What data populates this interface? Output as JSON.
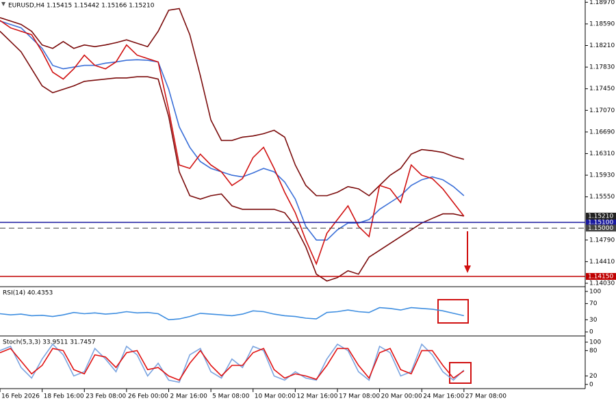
{
  "chart_data": [
    {
      "type": "line",
      "title": "EURUSD,H4 1.15415 1.15442 1.15166 1.15210",
      "x": [
        0,
        4,
        8,
        12,
        16,
        20,
        24,
        28,
        32,
        36,
        40,
        44,
        48,
        52,
        56,
        60,
        64,
        68,
        72,
        76,
        80,
        84,
        88,
        92,
        96,
        100,
        104,
        108,
        112,
        116,
        120,
        124,
        128,
        132,
        136,
        140,
        144,
        148,
        152,
        156,
        160,
        164,
        168,
        172,
        176
      ],
      "xlim": [
        0,
        222
      ],
      "xticks": [
        {
          "value": 0,
          "label": "16 Feb 2026"
        },
        {
          "value": 16,
          "label": "18 Feb 16:00"
        },
        {
          "value": 32,
          "label": "23 Feb 08:00"
        },
        {
          "value": 48,
          "label": "26 Feb 00:00"
        },
        {
          "value": 64,
          "label": "2 Mar 16:00"
        },
        {
          "value": 80,
          "label": "5 Mar 08:00"
        },
        {
          "value": 96,
          "label": "10 Mar 00:00"
        },
        {
          "value": 112,
          "label": "12 Mar 16:00"
        },
        {
          "value": 128,
          "label": "17 Mar 08:00"
        },
        {
          "value": 144,
          "label": "20 Mar 00:00"
        },
        {
          "value": 160,
          "label": "24 Mar 16:00"
        },
        {
          "value": 176,
          "label": "27 Mar 08:00"
        }
      ],
      "ylim": [
        1.1397,
        1.1901
      ],
      "yticks": [
        {
          "value": 1.1897,
          "label": "1.18970"
        },
        {
          "value": 1.1859,
          "label": "1.18590"
        },
        {
          "value": 1.1821,
          "label": "1.18210"
        },
        {
          "value": 1.1783,
          "label": "1.17830"
        },
        {
          "value": 1.1745,
          "label": "1.17450"
        },
        {
          "value": 1.1707,
          "label": "1.17070"
        },
        {
          "value": 1.1669,
          "label": "1.16690"
        },
        {
          "value": 1.1631,
          "label": "1.16310"
        },
        {
          "value": 1.1593,
          "label": "1.15930"
        },
        {
          "value": 1.1555,
          "label": "1.15550"
        },
        {
          "value": 1.1479,
          "label": "1.14790"
        },
        {
          "value": 1.1441,
          "label": "1.14410"
        },
        {
          "value": 1.1403,
          "label": "1.14030"
        }
      ],
      "series": [
        {
          "color": "#7a0a0a",
          "values": [
            1.187,
            1.1864,
            1.1858,
            1.1846,
            1.1822,
            1.1816,
            1.1828,
            1.1816,
            1.1822,
            1.1819,
            1.1822,
            1.1826,
            1.1831,
            1.1825,
            1.1819,
            1.1846,
            1.1883,
            1.1886,
            1.184,
            1.1768,
            1.169,
            1.1654,
            1.1654,
            1.166,
            1.1662,
            1.1666,
            1.1672,
            1.166,
            1.1611,
            1.1575,
            1.1557,
            1.1557,
            1.1563,
            1.1573,
            1.1569,
            1.1557,
            1.1575,
            1.1593,
            1.1605,
            1.163,
            1.1638,
            1.1636,
            1.1633,
            1.1626,
            1.1621
          ]
        },
        {
          "color": "#7a0a0a",
          "values": [
            1.1846,
            1.1828,
            1.181,
            1.178,
            1.175,
            1.1738,
            1.1744,
            1.175,
            1.1758,
            1.176,
            1.1762,
            1.1764,
            1.1764,
            1.1766,
            1.1766,
            1.1762,
            1.1696,
            1.1599,
            1.1557,
            1.1551,
            1.1557,
            1.156,
            1.1539,
            1.1533,
            1.1533,
            1.1533,
            1.1533,
            1.1527,
            1.1503,
            1.1467,
            1.1419,
            1.1407,
            1.1413,
            1.1425,
            1.1419,
            1.1449,
            1.1461,
            1.1473,
            1.1485,
            1.1497,
            1.1509,
            1.1517,
            1.1525,
            1.1525,
            1.1521
          ]
        },
        {
          "color": "#3a6fd8",
          "values": [
            1.1864,
            1.1858,
            1.1852,
            1.1834,
            1.1816,
            1.1786,
            1.178,
            1.1783,
            1.1786,
            1.1786,
            1.179,
            1.1792,
            1.1795,
            1.1796,
            1.1795,
            1.1792,
            1.1744,
            1.1678,
            1.1642,
            1.1617,
            1.1605,
            1.1599,
            1.1593,
            1.159,
            1.1597,
            1.1605,
            1.1599,
            1.1581,
            1.1551,
            1.1503,
            1.1479,
            1.1479,
            1.1497,
            1.1509,
            1.1509,
            1.1515,
            1.1533,
            1.1545,
            1.1557,
            1.1575,
            1.1585,
            1.159,
            1.1585,
            1.1573,
            1.1557
          ]
        },
        {
          "color": "#d01010",
          "values": [
            1.1865,
            1.1852,
            1.1846,
            1.184,
            1.181,
            1.1774,
            1.1762,
            1.178,
            1.1804,
            1.1786,
            1.178,
            1.1792,
            1.1822,
            1.1804,
            1.1798,
            1.1792,
            1.1708,
            1.1611,
            1.1605,
            1.163,
            1.1611,
            1.1599,
            1.1575,
            1.1587,
            1.1624,
            1.1642,
            1.1605,
            1.1563,
            1.1527,
            1.1479,
            1.1437,
            1.1491,
            1.1515,
            1.1539,
            1.1503,
            1.1485,
            1.1575,
            1.1569,
            1.1545,
            1.1611,
            1.1593,
            1.1587,
            1.1569,
            1.1545,
            1.1521
          ]
        }
      ],
      "levels": [
        {
          "value": 1.151,
          "label": "1.15100",
          "color": "#1a1aa0",
          "dashed": false
        },
        {
          "value": 1.15,
          "label": "1.15000",
          "color": "#444444",
          "dashed": true
        },
        {
          "value": 1.1415,
          "label": "1.14150",
          "color": "#c00000",
          "dashed": false
        }
      ],
      "price_tag": {
        "value": 1.1521,
        "label": "1.15210",
        "color": "#222222"
      }
    },
    {
      "type": "line",
      "title": "RSI(14) 40.4353",
      "ylim": [
        -10,
        110
      ],
      "yticks": [
        100,
        70,
        30,
        0
      ],
      "series": [
        {
          "color": "#3d8de0",
          "values": [
            45,
            42,
            44,
            40,
            41,
            38,
            42,
            48,
            45,
            47,
            44,
            46,
            50,
            47,
            48,
            45,
            30,
            32,
            38,
            46,
            44,
            42,
            40,
            44,
            52,
            50,
            44,
            40,
            38,
            34,
            32,
            48,
            50,
            54,
            50,
            48,
            60,
            58,
            54,
            60,
            58,
            56,
            52,
            46,
            40
          ]
        }
      ]
    },
    {
      "type": "line",
      "title": "Stoch(5,3,3) 33.9511 31.7457",
      "ylim": [
        -10,
        113
      ],
      "yticks": [
        100,
        80,
        20,
        0
      ],
      "series": [
        {
          "color": "#7aa4e0",
          "values": [
            80,
            90,
            40,
            15,
            60,
            95,
            70,
            20,
            30,
            85,
            60,
            30,
            90,
            70,
            20,
            50,
            10,
            5,
            70,
            85,
            30,
            15,
            60,
            40,
            90,
            80,
            20,
            10,
            30,
            15,
            10,
            60,
            95,
            80,
            30,
            10,
            90,
            75,
            20,
            30,
            95,
            70,
            30,
            10,
            34
          ]
        },
        {
          "color": "#e01010",
          "values": [
            75,
            85,
            55,
            25,
            45,
            85,
            80,
            35,
            25,
            70,
            65,
            40,
            75,
            80,
            35,
            40,
            20,
            10,
            50,
            80,
            45,
            20,
            45,
            45,
            75,
            85,
            35,
            15,
            25,
            20,
            12,
            45,
            85,
            85,
            45,
            15,
            75,
            85,
            35,
            25,
            80,
            80,
            45,
            15,
            32
          ]
        }
      ]
    }
  ]
}
